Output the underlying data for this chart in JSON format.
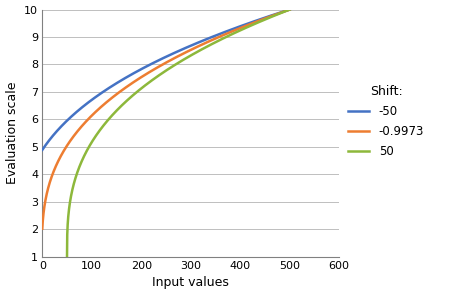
{
  "title": "",
  "xlabel": "Input values",
  "ylabel": "Evaluation scale",
  "xlim": [
    0,
    600
  ],
  "ylim": [
    1,
    10
  ],
  "yticks": [
    1,
    2,
    3,
    4,
    5,
    6,
    7,
    8,
    9,
    10
  ],
  "xticks": [
    0,
    100,
    200,
    300,
    400,
    500,
    600
  ],
  "legend_title": "Shift:",
  "series": [
    {
      "shift": -50,
      "color": "#4472C4",
      "label": "-50"
    },
    {
      "shift": -0.9973,
      "color": "#ED7D31",
      "label": "-0.9973"
    },
    {
      "shift": 50,
      "color": "#8DB83B",
      "label": "50"
    }
  ],
  "x_max_ref": 500,
  "y_min": 1,
  "y_max": 10,
  "exponent": 0.35,
  "background_color": "#ffffff",
  "grid_color": "#bfbfbf",
  "linewidth": 1.8
}
